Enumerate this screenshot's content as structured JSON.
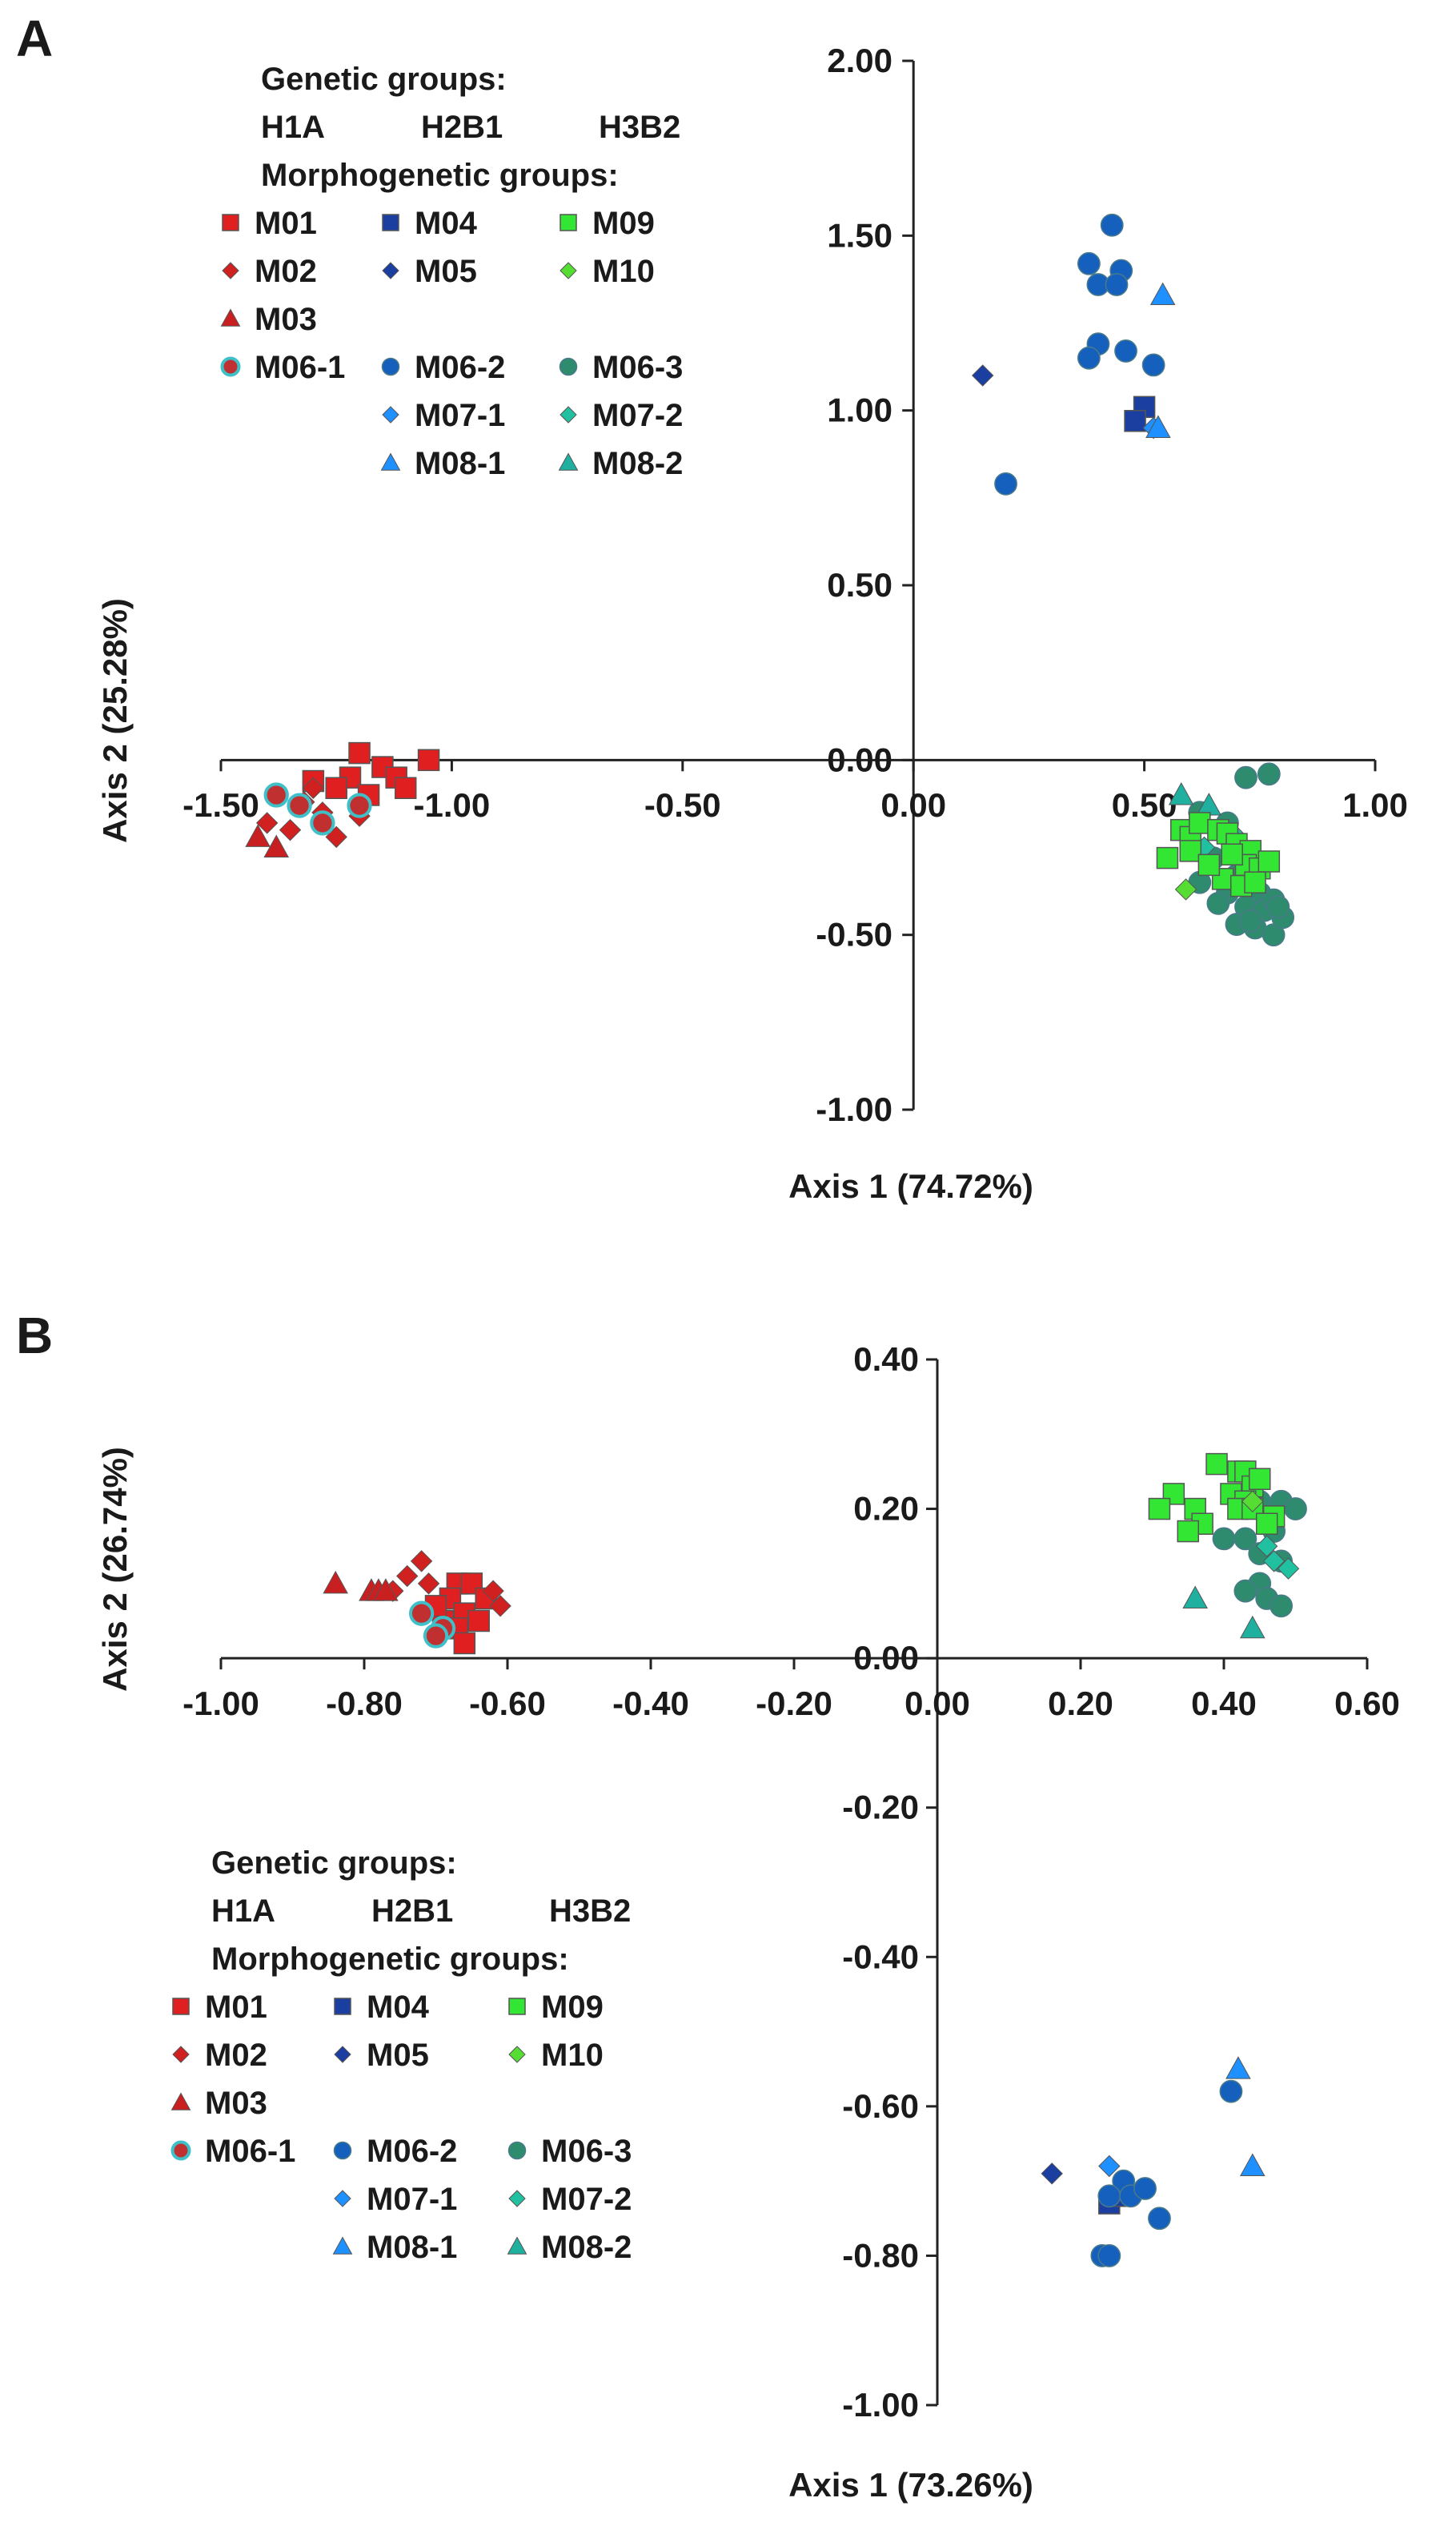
{
  "chart_data": [
    {
      "panel": "A",
      "type": "scatter",
      "xlabel": "Axis 1 (74.72%)",
      "ylabel": "Axis 2 (25.28%)",
      "xlim": [
        -1.5,
        1.0
      ],
      "ylim": [
        -1.0,
        2.0
      ],
      "x_ticks": [
        "-1.50",
        "-1.00",
        "-0.50",
        "0.00",
        "0.50",
        "1.00"
      ],
      "y_ticks": [
        "-1.00",
        "-0.50",
        "0.00",
        "0.50",
        "1.00",
        "1.50",
        "2.00"
      ],
      "legend": {
        "genetic_title": "Genetic groups:",
        "genetic_groups": [
          "H1A",
          "H2B1",
          "H3B2"
        ],
        "morpho_title": "Morphogenetic groups:",
        "entries": [
          "M01",
          "M04",
          "M09",
          "M02",
          "M05",
          "M10",
          "M03",
          "M06-1",
          "M06-2",
          "M06-3",
          "M07-1",
          "M07-2",
          "M08-1",
          "M08-2"
        ]
      },
      "series": [
        {
          "name": "M01",
          "marker": "square",
          "color": "#e02020",
          "points": [
            [
              -1.05,
              0.0
            ],
            [
              -1.15,
              -0.02
            ],
            [
              -1.12,
              -0.05
            ],
            [
              -1.22,
              -0.05
            ],
            [
              -1.25,
              -0.08
            ],
            [
              -1.18,
              -0.1
            ],
            [
              -1.3,
              -0.06
            ],
            [
              -1.2,
              0.02
            ],
            [
              -1.1,
              -0.08
            ]
          ]
        },
        {
          "name": "M02",
          "marker": "diamond",
          "color": "#d02020",
          "points": [
            [
              -1.32,
              -0.12
            ],
            [
              -1.28,
              -0.15
            ],
            [
              -1.2,
              -0.16
            ],
            [
              -1.35,
              -0.2
            ],
            [
              -1.25,
              -0.22
            ],
            [
              -1.4,
              -0.18
            ],
            [
              -1.3,
              -0.08
            ]
          ]
        },
        {
          "name": "M03",
          "marker": "triangle",
          "color": "#c82020",
          "points": [
            [
              -1.42,
              -0.22
            ],
            [
              -1.38,
              -0.25
            ]
          ]
        },
        {
          "name": "M04",
          "marker": "square",
          "color": "#1a3fa0",
          "points": [
            [
              0.5,
              1.01
            ],
            [
              0.48,
              0.97
            ]
          ]
        },
        {
          "name": "M05",
          "marker": "diamond",
          "color": "#1a3fa0",
          "points": [
            [
              0.15,
              1.1
            ]
          ]
        },
        {
          "name": "M06-1",
          "marker": "ring",
          "color": "#c03030",
          "points": [
            [
              -1.38,
              -0.1
            ],
            [
              -1.2,
              -0.13
            ],
            [
              -1.28,
              -0.18
            ],
            [
              -1.33,
              -0.13
            ]
          ]
        },
        {
          "name": "M06-2",
          "marker": "circle",
          "color": "#1560bd",
          "points": [
            [
              0.43,
              1.53
            ],
            [
              0.38,
              1.42
            ],
            [
              0.45,
              1.4
            ],
            [
              0.4,
              1.36
            ],
            [
              0.44,
              1.36
            ],
            [
              0.4,
              1.19
            ],
            [
              0.38,
              1.15
            ],
            [
              0.46,
              1.17
            ],
            [
              0.52,
              1.13
            ],
            [
              0.2,
              0.79
            ]
          ]
        },
        {
          "name": "M06-3",
          "marker": "circle",
          "color": "#2e8b6e",
          "points": [
            [
              0.77,
              -0.04
            ],
            [
              0.72,
              -0.05
            ],
            [
              0.62,
              -0.15
            ],
            [
              0.68,
              -0.18
            ],
            [
              0.65,
              -0.28
            ],
            [
              0.7,
              -0.33
            ],
            [
              0.62,
              -0.35
            ],
            [
              0.75,
              -0.38
            ],
            [
              0.68,
              -0.38
            ],
            [
              0.72,
              -0.42
            ],
            [
              0.76,
              -0.43
            ],
            [
              0.7,
              -0.47
            ],
            [
              0.74,
              -0.48
            ],
            [
              0.78,
              -0.5
            ],
            [
              0.8,
              -0.45
            ],
            [
              0.78,
              -0.4
            ],
            [
              0.66,
              -0.41
            ],
            [
              0.73,
              -0.46
            ],
            [
              0.79,
              -0.42
            ]
          ]
        },
        {
          "name": "M07-1",
          "marker": "diamond",
          "color": "#1e90ff",
          "points": [
            [
              0.52,
              0.95
            ]
          ]
        },
        {
          "name": "M07-2",
          "marker": "diamond",
          "color": "#20c0a0",
          "points": [
            [
              0.7,
              -0.22
            ],
            [
              0.74,
              -0.32
            ],
            [
              0.63,
              -0.25
            ]
          ]
        },
        {
          "name": "M08-1",
          "marker": "triangle",
          "color": "#1e90ff",
          "points": [
            [
              0.54,
              1.33
            ],
            [
              0.53,
              0.95
            ]
          ]
        },
        {
          "name": "M08-2",
          "marker": "triangle",
          "color": "#20b0a0",
          "points": [
            [
              0.64,
              -0.13
            ],
            [
              0.58,
              -0.1
            ]
          ]
        },
        {
          "name": "M09",
          "marker": "square",
          "color": "#33e633",
          "points": [
            [
              0.58,
              -0.2
            ],
            [
              0.6,
              -0.22
            ],
            [
              0.62,
              -0.18
            ],
            [
              0.66,
              -0.2
            ],
            [
              0.68,
              -0.21
            ],
            [
              0.7,
              -0.24
            ],
            [
              0.73,
              -0.26
            ],
            [
              0.72,
              -0.3
            ],
            [
              0.75,
              -0.31
            ],
            [
              0.77,
              -0.29
            ],
            [
              0.55,
              -0.28
            ],
            [
              0.6,
              -0.26
            ],
            [
              0.67,
              -0.34
            ],
            [
              0.71,
              -0.36
            ],
            [
              0.74,
              -0.35
            ],
            [
              0.64,
              -0.3
            ],
            [
              0.69,
              -0.27
            ]
          ]
        },
        {
          "name": "M10",
          "marker": "diamond",
          "color": "#55dd33",
          "points": [
            [
              0.59,
              -0.37
            ]
          ]
        }
      ]
    },
    {
      "panel": "B",
      "type": "scatter",
      "xlabel": "Axis 1 (73.26%)",
      "ylabel": "Axis 2 (26.74%)",
      "xlim": [
        -1.0,
        0.6
      ],
      "ylim": [
        -1.0,
        0.4
      ],
      "x_ticks": [
        "-1.00",
        "-0.80",
        "-0.60",
        "-0.40",
        "-0.20",
        "0.00",
        "0.20",
        "0.40",
        "0.60"
      ],
      "y_ticks": [
        "-1.00",
        "-0.80",
        "-0.60",
        "-0.40",
        "-0.20",
        "0.00",
        "0.20",
        "0.40"
      ],
      "legend": {
        "genetic_title": "Genetic groups:",
        "genetic_groups": [
          "H1A",
          "H2B1",
          "H3B2"
        ],
        "morpho_title": "Morphogenetic groups:",
        "entries": [
          "M01",
          "M04",
          "M09",
          "M02",
          "M05",
          "M10",
          "M03",
          "M06-1",
          "M06-2",
          "M06-3",
          "M07-1",
          "M07-2",
          "M08-1",
          "M08-2"
        ]
      },
      "series": [
        {
          "name": "M01",
          "marker": "square",
          "color": "#e02020",
          "points": [
            [
              -0.67,
              0.1
            ],
            [
              -0.65,
              0.1
            ],
            [
              -0.68,
              0.08
            ],
            [
              -0.63,
              0.08
            ],
            [
              -0.66,
              0.06
            ],
            [
              -0.69,
              0.05
            ],
            [
              -0.64,
              0.05
            ],
            [
              -0.7,
              0.07
            ],
            [
              -0.67,
              0.04
            ],
            [
              -0.66,
              0.02
            ]
          ]
        },
        {
          "name": "M02",
          "marker": "diamond",
          "color": "#d02020",
          "points": [
            [
              -0.72,
              0.13
            ],
            [
              -0.74,
              0.11
            ],
            [
              -0.71,
              0.1
            ],
            [
              -0.61,
              0.07
            ],
            [
              -0.62,
              0.09
            ],
            [
              -0.76,
              0.09
            ]
          ]
        },
        {
          "name": "M03",
          "marker": "triangle",
          "color": "#c82020",
          "points": [
            [
              -0.84,
              0.1
            ],
            [
              -0.79,
              0.09
            ],
            [
              -0.78,
              0.09
            ],
            [
              -0.77,
              0.09
            ]
          ]
        },
        {
          "name": "M04",
          "marker": "square",
          "color": "#1a3fa0",
          "points": [
            [
              0.24,
              -0.73
            ],
            [
              0.26,
              -0.72
            ]
          ]
        },
        {
          "name": "M05",
          "marker": "diamond",
          "color": "#1a3fa0",
          "points": [
            [
              0.16,
              -0.69
            ]
          ]
        },
        {
          "name": "M06-1",
          "marker": "ring",
          "color": "#c03030",
          "points": [
            [
              -0.72,
              0.06
            ],
            [
              -0.69,
              0.04
            ],
            [
              -0.7,
              0.03
            ]
          ]
        },
        {
          "name": "M06-2",
          "marker": "circle",
          "color": "#1560bd",
          "points": [
            [
              0.41,
              -0.58
            ],
            [
              0.26,
              -0.7
            ],
            [
              0.24,
              -0.72
            ],
            [
              0.27,
              -0.72
            ],
            [
              0.29,
              -0.71
            ],
            [
              0.31,
              -0.75
            ],
            [
              0.23,
              -0.8
            ],
            [
              0.24,
              -0.8
            ]
          ]
        },
        {
          "name": "M06-3",
          "marker": "circle",
          "color": "#2e8b6e",
          "points": [
            [
              0.45,
              0.21
            ],
            [
              0.48,
              0.21
            ],
            [
              0.5,
              0.2
            ],
            [
              0.47,
              0.17
            ],
            [
              0.4,
              0.16
            ],
            [
              0.43,
              0.16
            ],
            [
              0.45,
              0.14
            ],
            [
              0.48,
              0.13
            ],
            [
              0.45,
              0.1
            ],
            [
              0.43,
              0.09
            ],
            [
              0.46,
              0.08
            ],
            [
              0.48,
              0.07
            ]
          ]
        },
        {
          "name": "M07-1",
          "marker": "diamond",
          "color": "#1e90ff",
          "points": [
            [
              0.24,
              -0.68
            ]
          ]
        },
        {
          "name": "M07-2",
          "marker": "diamond",
          "color": "#20c0a0",
          "points": [
            [
              0.46,
              0.15
            ],
            [
              0.49,
              0.12
            ],
            [
              0.47,
              0.13
            ]
          ]
        },
        {
          "name": "M08-1",
          "marker": "triangle",
          "color": "#1e90ff",
          "points": [
            [
              0.42,
              -0.55
            ],
            [
              0.44,
              -0.68
            ]
          ]
        },
        {
          "name": "M08-2",
          "marker": "triangle",
          "color": "#20b0a0",
          "points": [
            [
              0.36,
              0.08
            ],
            [
              0.44,
              0.04
            ]
          ]
        },
        {
          "name": "M09",
          "marker": "square",
          "color": "#33e633",
          "points": [
            [
              0.39,
              0.26
            ],
            [
              0.42,
              0.25
            ],
            [
              0.43,
              0.25
            ],
            [
              0.44,
              0.23
            ],
            [
              0.45,
              0.24
            ],
            [
              0.41,
              0.22
            ],
            [
              0.43,
              0.21
            ],
            [
              0.42,
              0.2
            ],
            [
              0.44,
              0.2
            ],
            [
              0.47,
              0.19
            ],
            [
              0.33,
              0.22
            ],
            [
              0.31,
              0.2
            ],
            [
              0.36,
              0.2
            ],
            [
              0.37,
              0.18
            ],
            [
              0.35,
              0.17
            ],
            [
              0.46,
              0.18
            ]
          ]
        },
        {
          "name": "M10",
          "marker": "diamond",
          "color": "#55dd33",
          "points": [
            [
              0.44,
              0.21
            ]
          ]
        }
      ]
    }
  ]
}
